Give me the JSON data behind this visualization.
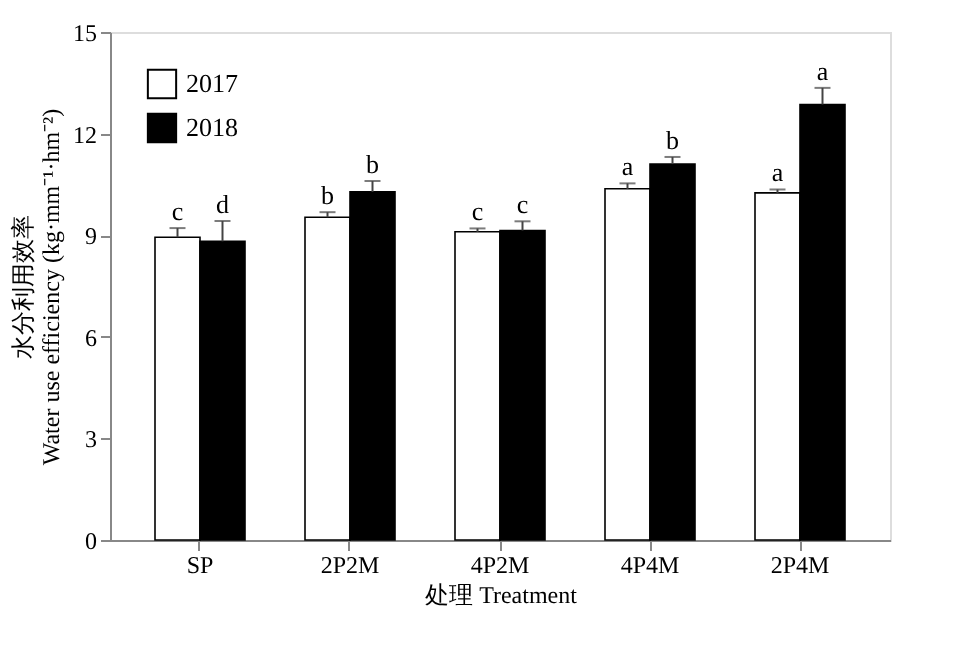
{
  "chart_data": {
    "type": "bar",
    "ylabel": "水分利用效率\nWater use efficiency (kg·mm⁻¹·hm⁻²)",
    "xlabel": "处理 Treatment",
    "categories": [
      "SP",
      "2P2M",
      "4P2M",
      "4P4M",
      "2P4M"
    ],
    "series": [
      {
        "name": "2017",
        "color": "#ffffff",
        "values": [
          8.94,
          9.53,
          9.1,
          10.37,
          10.25
        ],
        "errors": [
          0.27,
          0.15,
          0.1,
          0.16,
          0.1
        ],
        "value_labels": [
          "c",
          "b",
          "c",
          "a",
          "a"
        ]
      },
      {
        "name": "2018",
        "color": "#000000",
        "values": [
          8.82,
          10.28,
          9.14,
          11.1,
          12.86
        ],
        "errors": [
          0.6,
          0.32,
          0.27,
          0.21,
          0.49
        ],
        "value_labels": [
          "d",
          "b",
          "c",
          "b",
          "a"
        ]
      }
    ],
    "ylim": [
      0,
      15
    ],
    "yticks": [
      0,
      3,
      6,
      9,
      12,
      15
    ],
    "grid": false,
    "legend": "top left"
  }
}
